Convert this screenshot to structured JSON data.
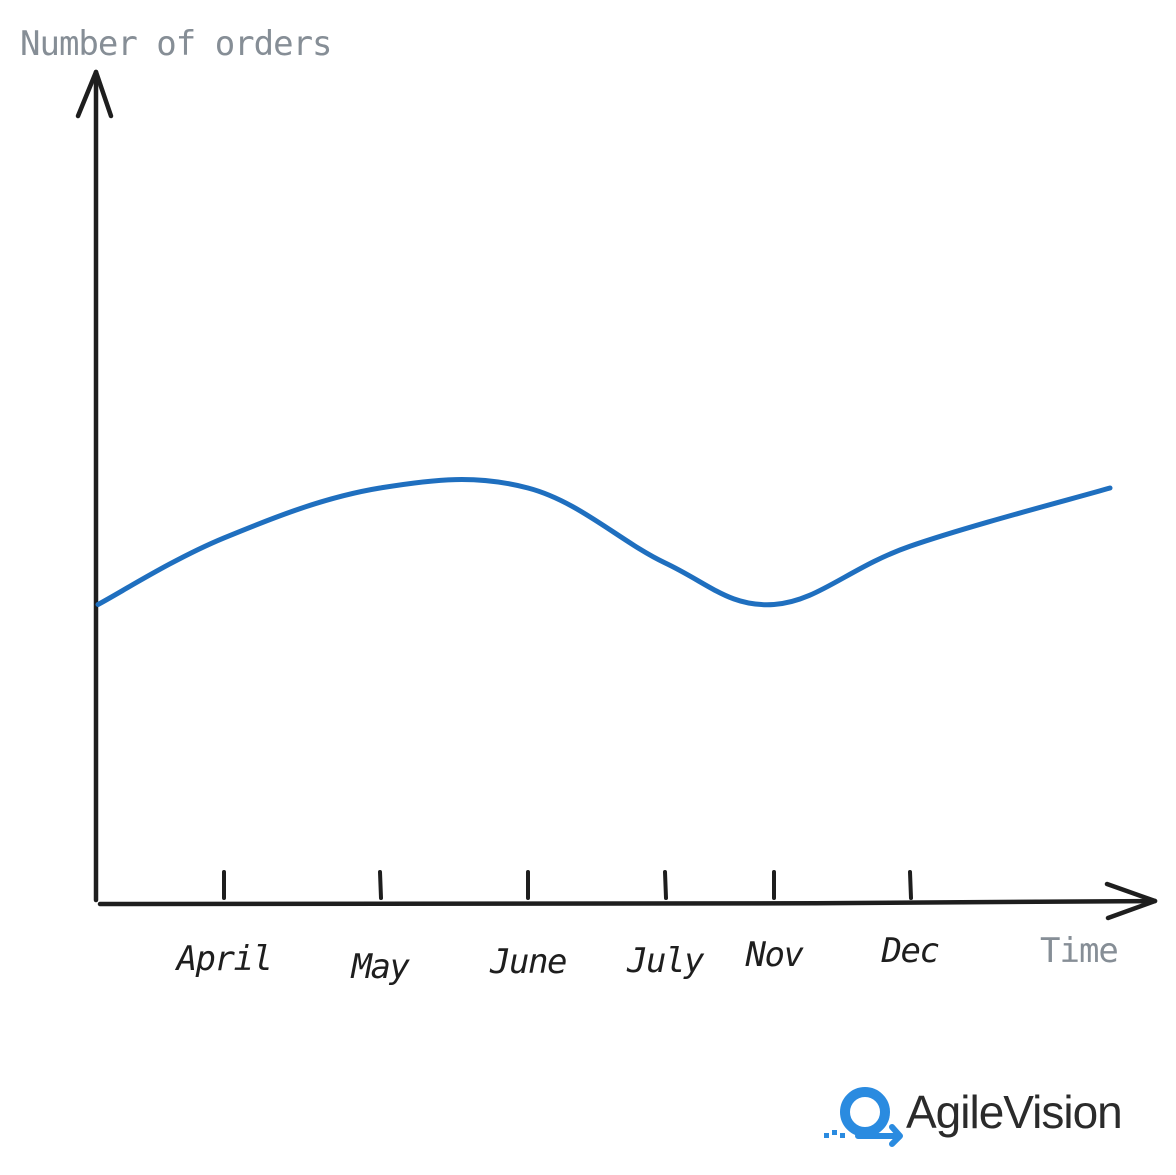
{
  "chart_data": {
    "type": "line",
    "title": "",
    "xlabel": "Time",
    "ylabel": "Number of orders",
    "categories": [
      "April",
      "May",
      "June",
      "July",
      "Nov",
      "Dec"
    ],
    "series": [
      {
        "color": "#1f6fbf",
        "values": [
          4.4,
          5.0,
          5.0,
          4.1,
          3.6,
          4.3
        ]
      }
    ],
    "ylim": [
      0,
      10
    ],
    "grid": false,
    "legend": "none",
    "line_style": "smooth hand-drawn"
  },
  "branding": {
    "logo_text": "AgileVision",
    "logo_color": "#2a8be0",
    "text_color": "#2b2b2b"
  },
  "axis_color": "#1e1e1e",
  "label_color": "#868e96"
}
